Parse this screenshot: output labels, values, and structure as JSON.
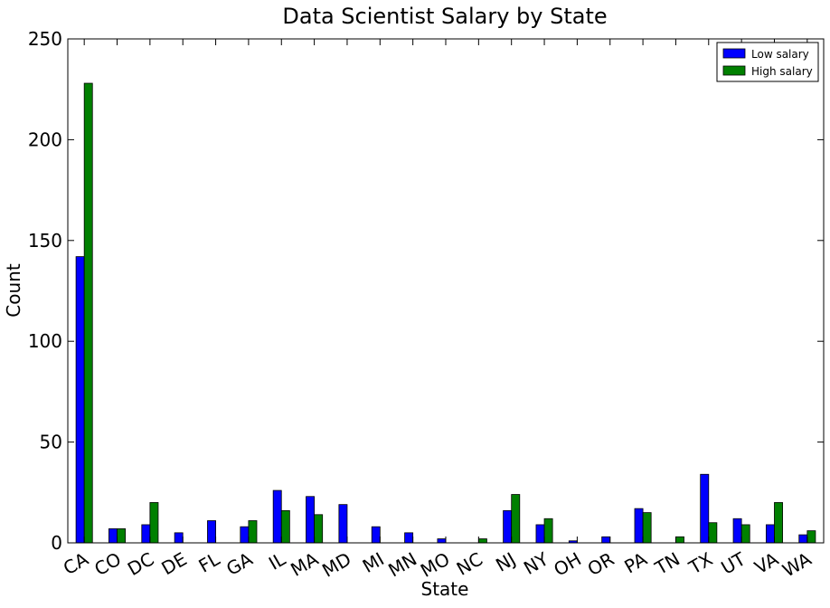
{
  "chart_data": {
    "type": "bar",
    "title": "Data Scientist Salary by State",
    "xlabel": "State",
    "ylabel": "Count",
    "ylim": [
      0,
      250
    ],
    "yticks": [
      0,
      50,
      100,
      150,
      200,
      250
    ],
    "grid": false,
    "legend_position": "top-right",
    "categories": [
      "CA",
      "CO",
      "DC",
      "DE",
      "FL",
      "GA",
      "IL",
      "MA",
      "MD",
      "MI",
      "MN",
      "MO",
      "NC",
      "NJ",
      "NY",
      "OH",
      "OR",
      "PA",
      "TN",
      "TX",
      "UT",
      "VA",
      "WA"
    ],
    "series": [
      {
        "name": "Low salary",
        "color": "#0000ff",
        "values": [
          142,
          7,
          9,
          5,
          11,
          8,
          26,
          23,
          19,
          8,
          5,
          2,
          0,
          16,
          9,
          1,
          3,
          17,
          0,
          34,
          12,
          9,
          4
        ]
      },
      {
        "name": "High salary",
        "color": "#008000",
        "values": [
          228,
          7,
          20,
          0,
          0,
          11,
          16,
          14,
          0,
          0,
          0,
          0,
          2,
          24,
          12,
          0,
          0,
          15,
          3,
          10,
          9,
          20,
          6
        ]
      }
    ]
  }
}
